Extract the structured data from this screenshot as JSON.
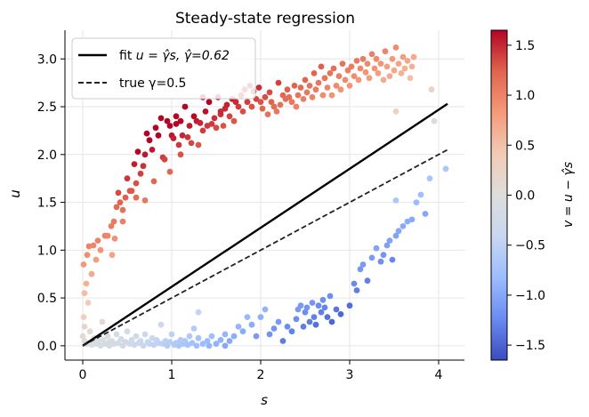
{
  "chart_data": {
    "type": "scatter",
    "title": "Steady-state regression",
    "xlabel": "s",
    "ylabel": "u",
    "xlim": [
      -0.2,
      4.29
    ],
    "ylim": [
      -0.15,
      3.3
    ],
    "xticks": [
      0,
      1,
      2,
      3,
      4
    ],
    "yticks": [
      0.0,
      0.5,
      1.0,
      1.5,
      2.0,
      2.5,
      3.0
    ],
    "xtick_labels": [
      "0",
      "1",
      "2",
      "3",
      "4"
    ],
    "ytick_labels": [
      "0.0",
      "0.5",
      "1.0",
      "1.5",
      "2.0",
      "2.5",
      "3.0"
    ],
    "grid": true,
    "legend_placement": "upper-left",
    "lines": [
      {
        "name": "fit u = γ̂s, γ̂=0.62",
        "style": "solid",
        "color": "#000000",
        "x": [
          0,
          4.1
        ],
        "y": [
          0,
          2.53
        ]
      },
      {
        "name": "true γ=0.5",
        "style": "dashed",
        "color": "#222222",
        "x": [
          0,
          4.1
        ],
        "y": [
          0,
          2.05
        ]
      }
    ],
    "legend": {
      "fit_prefix": "fit ",
      "fit_eq": "u = γ̂s, γ̂=0.62",
      "true_label": "true γ=0.5"
    },
    "colorbar": {
      "label": "v = u − γ̂s",
      "range": [
        -1.65,
        1.65
      ],
      "ticks": [
        -1.5,
        -1.0,
        -0.5,
        0.0,
        0.5,
        1.0,
        1.5
      ],
      "tick_labels": [
        "−1.5",
        "−1.0",
        "−0.5",
        "0.0",
        "0.5",
        "1.0",
        "1.5"
      ],
      "colormap": "coolwarm",
      "stops": [
        "#3b4cc0",
        "#6a8bef",
        "#9bbcff",
        "#c9d7f0",
        "#dddddd",
        "#f2cbb7",
        "#f49a7b",
        "#e0654f",
        "#b40426"
      ]
    },
    "points": [
      [
        0.0,
        0.1
      ],
      [
        0.01,
        0.3
      ],
      [
        0.02,
        0.55
      ],
      [
        0.01,
        0.85
      ],
      [
        0.03,
        0.02
      ],
      [
        0.02,
        0.2
      ],
      [
        0.04,
        0.65
      ],
      [
        0.05,
        0.95
      ],
      [
        0.06,
        0.45
      ],
      [
        0.07,
        1.04
      ],
      [
        0.08,
        0.15
      ],
      [
        0.1,
        0.75
      ],
      [
        0.12,
        1.05
      ],
      [
        0.12,
        0.05
      ],
      [
        0.15,
        0.9
      ],
      [
        0.17,
        1.1
      ],
      [
        0.2,
        1.0
      ],
      [
        0.22,
        0.25
      ],
      [
        0.25,
        1.15
      ],
      [
        0.28,
        1.15
      ],
      [
        0.3,
        0.04
      ],
      [
        0.32,
        1.25
      ],
      [
        0.35,
        1.3
      ],
      [
        0.36,
        1.12
      ],
      [
        0.38,
        1.45
      ],
      [
        0.4,
        1.6
      ],
      [
        0.42,
        1.5
      ],
      [
        0.45,
        1.42
      ],
      [
        0.48,
        1.55
      ],
      [
        0.5,
        1.75
      ],
      [
        0.55,
        1.62
      ],
      [
        0.58,
        1.9
      ],
      [
        0.6,
        1.7
      ],
      [
        0.62,
        2.03
      ],
      [
        0.65,
        1.8
      ],
      [
        0.68,
        1.88
      ],
      [
        0.7,
        2.0
      ],
      [
        0.72,
        2.22
      ],
      [
        0.75,
        2.15
      ],
      [
        0.78,
        2.05
      ],
      [
        0.8,
        1.72
      ],
      [
        0.82,
        2.28
      ],
      [
        0.85,
        2.2
      ],
      [
        0.88,
        2.38
      ],
      [
        0.9,
        1.97
      ],
      [
        0.92,
        1.95
      ],
      [
        0.95,
        2.35
      ],
      [
        0.98,
        2.3
      ],
      [
        1.0,
        2.2
      ],
      [
        1.02,
        2.17
      ],
      [
        1.05,
        2.4
      ],
      [
        1.08,
        2.1
      ],
      [
        1.1,
        2.0
      ],
      [
        1.12,
        2.2
      ],
      [
        1.15,
        2.5
      ],
      [
        1.18,
        2.18
      ],
      [
        1.2,
        2.3
      ],
      [
        1.22,
        2.12
      ],
      [
        1.25,
        2.4
      ],
      [
        1.28,
        2.35
      ],
      [
        1.3,
        2.1
      ],
      [
        1.32,
        2.33
      ],
      [
        1.35,
        2.25
      ],
      [
        1.38,
        2.45
      ],
      [
        1.4,
        2.3
      ],
      [
        1.42,
        2.55
      ],
      [
        1.45,
        2.32
      ],
      [
        1.48,
        2.38
      ],
      [
        1.5,
        2.28
      ],
      [
        1.52,
        2.6
      ],
      [
        1.55,
        2.42
      ],
      [
        1.58,
        2.3
      ],
      [
        1.6,
        2.48
      ],
      [
        1.62,
        2.52
      ],
      [
        1.65,
        2.4
      ],
      [
        1.68,
        2.58
      ],
      [
        1.7,
        2.35
      ],
      [
        1.72,
        2.55
      ],
      [
        1.75,
        2.5
      ],
      [
        1.78,
        2.62
      ],
      [
        1.8,
        2.45
      ],
      [
        1.82,
        2.68
      ],
      [
        1.85,
        2.55
      ],
      [
        1.88,
        2.72
      ],
      [
        1.9,
        2.5
      ],
      [
        1.92,
        2.66
      ],
      [
        1.95,
        2.58
      ],
      [
        1.98,
        2.7
      ],
      [
        2.0,
        2.55
      ],
      [
        2.02,
        2.48
      ],
      [
        2.05,
        2.6
      ],
      [
        2.08,
        2.42
      ],
      [
        2.1,
        2.65
      ],
      [
        2.12,
        2.55
      ],
      [
        2.15,
        2.5
      ],
      [
        2.18,
        2.45
      ],
      [
        2.2,
        2.75
      ],
      [
        2.22,
        2.52
      ],
      [
        2.25,
        2.62
      ],
      [
        2.28,
        2.58
      ],
      [
        2.3,
        2.68
      ],
      [
        2.32,
        2.6
      ],
      [
        2.35,
        2.55
      ],
      [
        2.38,
        2.72
      ],
      [
        2.4,
        2.5
      ],
      [
        2.42,
        2.62
      ],
      [
        2.45,
        2.7
      ],
      [
        2.48,
        2.58
      ],
      [
        2.5,
        2.78
      ],
      [
        2.52,
        2.65
      ],
      [
        2.55,
        2.72
      ],
      [
        2.58,
        2.6
      ],
      [
        2.6,
        2.85
      ],
      [
        2.62,
        2.68
      ],
      [
        2.65,
        2.75
      ],
      [
        2.68,
        2.92
      ],
      [
        2.7,
        2.62
      ],
      [
        2.72,
        2.8
      ],
      [
        2.75,
        2.7
      ],
      [
        2.78,
        2.85
      ],
      [
        2.8,
        2.62
      ],
      [
        2.82,
        2.9
      ],
      [
        2.85,
        2.72
      ],
      [
        2.88,
        2.82
      ],
      [
        2.9,
        2.68
      ],
      [
        2.92,
        2.95
      ],
      [
        2.95,
        2.78
      ],
      [
        2.98,
        2.88
      ],
      [
        3.0,
        2.72
      ],
      [
        3.02,
        2.92
      ],
      [
        3.05,
        2.82
      ],
      [
        3.08,
        2.98
      ],
      [
        3.1,
        2.78
      ],
      [
        3.12,
        2.9
      ],
      [
        3.15,
        3.0
      ],
      [
        3.18,
        2.86
      ],
      [
        3.2,
        2.95
      ],
      [
        3.22,
        2.8
      ],
      [
        3.25,
        3.05
      ],
      [
        3.28,
        2.9
      ],
      [
        3.3,
        3.0
      ],
      [
        3.32,
        2.85
      ],
      [
        3.35,
        2.95
      ],
      [
        3.38,
        2.78
      ],
      [
        3.4,
        3.08
      ],
      [
        3.42,
        2.92
      ],
      [
        3.45,
        2.82
      ],
      [
        3.48,
        3.0
      ],
      [
        3.5,
        2.88
      ],
      [
        3.52,
        3.12
      ],
      [
        3.55,
        2.95
      ],
      [
        3.58,
        2.85
      ],
      [
        3.6,
        3.02
      ],
      [
        3.62,
        2.9
      ],
      [
        3.65,
        2.98
      ],
      [
        3.68,
        2.8
      ],
      [
        3.7,
        2.92
      ],
      [
        3.72,
        3.02
      ],
      [
        3.52,
        2.45
      ],
      [
        3.92,
        2.68
      ],
      [
        1.1,
        2.35
      ],
      [
        1.05,
        2.32
      ],
      [
        1.35,
        2.6
      ],
      [
        1.55,
        2.45
      ],
      [
        0.7,
        1.52
      ],
      [
        0.98,
        1.82
      ],
      [
        0.45,
        1.3
      ],
      [
        0.53,
        1.62
      ],
      [
        0.6,
        1.55
      ],
      [
        0.33,
        0.95
      ],
      [
        0.05,
        0.02
      ],
      [
        0.08,
        0.03
      ],
      [
        0.1,
        0.01
      ],
      [
        0.13,
        0.08
      ],
      [
        0.15,
        0.02
      ],
      [
        0.18,
        0.05
      ],
      [
        0.2,
        0.0
      ],
      [
        0.23,
        0.06
      ],
      [
        0.25,
        0.02
      ],
      [
        0.28,
        0.1
      ],
      [
        0.3,
        0.0
      ],
      [
        0.33,
        0.05
      ],
      [
        0.35,
        0.02
      ],
      [
        0.38,
        0.12
      ],
      [
        0.4,
        0.03
      ],
      [
        0.43,
        0.07
      ],
      [
        0.45,
        0.0
      ],
      [
        0.48,
        0.04
      ],
      [
        0.5,
        0.15
      ],
      [
        0.53,
        0.02
      ],
      [
        0.55,
        0.06
      ],
      [
        0.58,
        0.01
      ],
      [
        0.6,
        0.1
      ],
      [
        0.63,
        0.03
      ],
      [
        0.65,
        0.05
      ],
      [
        0.68,
        0.0
      ],
      [
        0.7,
        0.12
      ],
      [
        0.73,
        0.04
      ],
      [
        0.75,
        0.02
      ],
      [
        0.78,
        0.08
      ],
      [
        0.8,
        0.01
      ],
      [
        0.83,
        0.06
      ],
      [
        0.85,
        0.03
      ],
      [
        0.88,
        0.22
      ],
      [
        0.9,
        0.02
      ],
      [
        0.93,
        0.05
      ],
      [
        0.95,
        0.0
      ],
      [
        0.98,
        0.04
      ],
      [
        1.0,
        0.12
      ],
      [
        1.03,
        0.01
      ],
      [
        1.05,
        0.03
      ],
      [
        1.08,
        0.0
      ],
      [
        1.1,
        0.06
      ],
      [
        1.13,
        0.02
      ],
      [
        1.15,
        0.05
      ],
      [
        1.18,
        0.01
      ],
      [
        1.2,
        0.1
      ],
      [
        1.23,
        0.03
      ],
      [
        1.25,
        0.18
      ],
      [
        1.3,
        0.35
      ],
      [
        1.35,
        0.02
      ],
      [
        1.4,
        0.05
      ],
      [
        1.45,
        0.1
      ],
      [
        1.5,
        0.02
      ],
      [
        1.55,
        0.06
      ],
      [
        1.6,
        0.12
      ],
      [
        1.65,
        0.05
      ],
      [
        1.7,
        0.1
      ],
      [
        1.75,
        0.2
      ],
      [
        1.8,
        0.15
      ],
      [
        1.85,
        0.3
      ],
      [
        1.9,
        0.22
      ],
      [
        1.95,
        0.1
      ],
      [
        2.0,
        0.3
      ],
      [
        2.05,
        0.38
      ],
      [
        2.1,
        0.12
      ],
      [
        2.15,
        0.18
      ],
      [
        2.2,
        0.25
      ],
      [
        2.25,
        0.05
      ],
      [
        2.3,
        0.2
      ],
      [
        2.35,
        0.15
      ],
      [
        2.4,
        0.28
      ],
      [
        2.42,
        0.38
      ],
      [
        2.45,
        0.42
      ],
      [
        2.48,
        0.2
      ],
      [
        2.5,
        0.35
      ],
      [
        2.52,
        0.4
      ],
      [
        2.55,
        0.25
      ],
      [
        2.58,
        0.45
      ],
      [
        2.6,
        0.3
      ],
      [
        2.62,
        0.22
      ],
      [
        2.65,
        0.42
      ],
      [
        2.68,
        0.35
      ],
      [
        2.7,
        0.48
      ],
      [
        2.72,
        0.4
      ],
      [
        2.75,
        0.3
      ],
      [
        2.78,
        0.52
      ],
      [
        2.8,
        0.25
      ],
      [
        2.85,
        0.38
      ],
      [
        2.9,
        0.33
      ],
      [
        3.0,
        0.42
      ],
      [
        3.05,
        0.65
      ],
      [
        3.08,
        0.58
      ],
      [
        3.12,
        0.8
      ],
      [
        3.15,
        0.85
      ],
      [
        3.2,
        0.68
      ],
      [
        3.25,
        0.92
      ],
      [
        3.3,
        1.02
      ],
      [
        3.35,
        0.88
      ],
      [
        3.38,
        0.95
      ],
      [
        3.42,
        1.05
      ],
      [
        3.45,
        1.1
      ],
      [
        3.48,
        0.9
      ],
      [
        3.52,
        1.15
      ],
      [
        3.55,
        1.2
      ],
      [
        3.6,
        1.25
      ],
      [
        3.65,
        1.3
      ],
      [
        3.7,
        1.32
      ],
      [
        3.75,
        1.5
      ],
      [
        3.8,
        1.58
      ],
      [
        3.85,
        1.38
      ],
      [
        3.9,
        1.75
      ],
      [
        3.95,
        2.35
      ],
      [
        4.08,
        1.85
      ],
      [
        3.52,
        1.52
      ],
      [
        1.3,
        0.08
      ],
      [
        1.28,
        0.0
      ],
      [
        1.42,
        0.0
      ],
      [
        1.6,
        0.0
      ],
      [
        0.02,
        0.05
      ]
    ]
  }
}
